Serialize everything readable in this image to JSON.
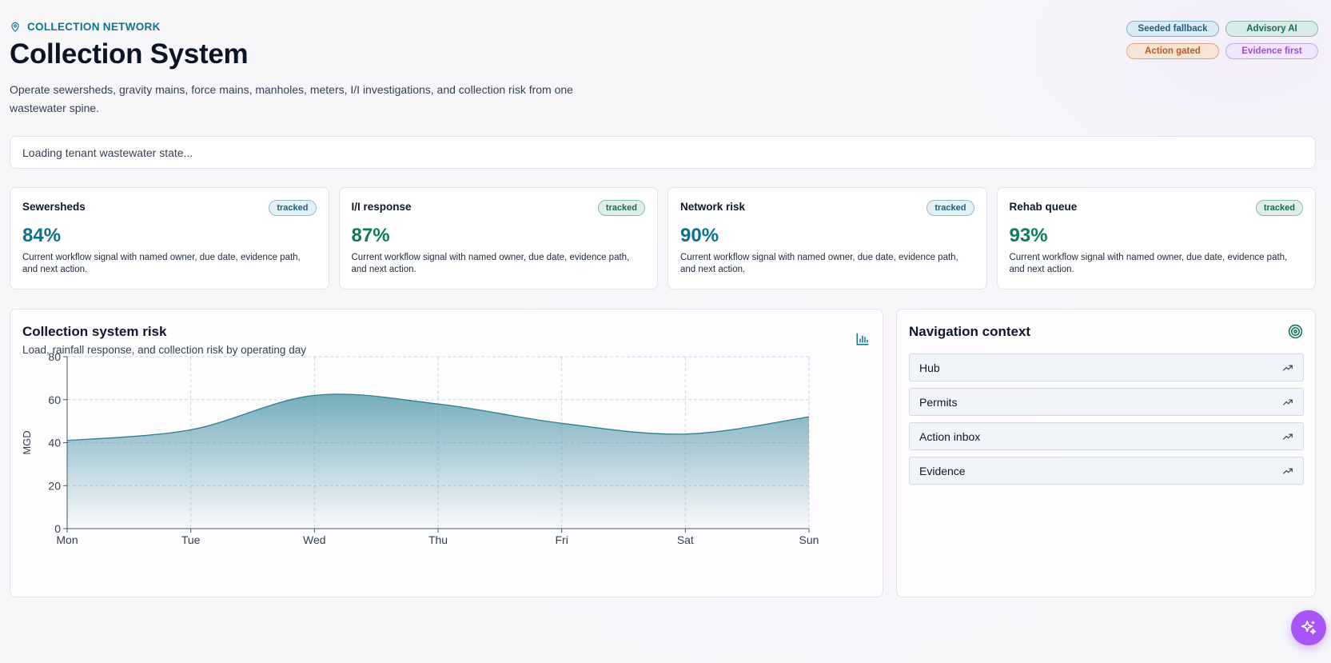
{
  "header": {
    "eyebrow": "COLLECTION NETWORK",
    "eyebrow_icon": "map-pin-icon",
    "title": "Collection System",
    "description": "Operate sewersheds, gravity mains, force mains, manholes, meters, I/I investigations, and collection risk from one wastewater spine."
  },
  "badges": [
    {
      "label": "Seeded fallback",
      "color": "#1e5f7e"
    },
    {
      "label": "Advisory AI",
      "color": "#196a58"
    },
    {
      "label": "Action gated",
      "color": "#b45a24"
    },
    {
      "label": "Evidence first",
      "color": "#9a4fd6"
    }
  ],
  "status": {
    "text": "Loading tenant wastewater state..."
  },
  "cards": [
    {
      "title": "Sewersheds",
      "tag": "tracked",
      "value": "84%",
      "value_color": "#0e6f8e",
      "description": "Current workflow signal with named owner, due date, evidence path, and next action."
    },
    {
      "title": "I/I response",
      "tag": "tracked",
      "value": "87%",
      "value_color": "#0f7a5c",
      "description": "Current workflow signal with named owner, due date, evidence path, and next action."
    },
    {
      "title": "Network risk",
      "tag": "tracked",
      "value": "90%",
      "value_color": "#0e6f8e",
      "description": "Current workflow signal with named owner, due date, evidence path, and next action."
    },
    {
      "title": "Rehab queue",
      "tag": "tracked",
      "value": "93%",
      "value_color": "#0f7a5c",
      "description": "Current workflow signal with named owner, due date, evidence path, and next action."
    }
  ],
  "chart": {
    "title": "Collection system risk",
    "subtitle": "Load, rainfall response, and collection risk by operating day",
    "icon": "bar-chart-icon"
  },
  "chart_data": {
    "type": "area",
    "categories": [
      "Mon",
      "Tue",
      "Wed",
      "Thu",
      "Fri",
      "Sat",
      "Sun"
    ],
    "series": [
      {
        "values": [
          41,
          46,
          62,
          58,
          49,
          44,
          52
        ],
        "color": "#2f7d91"
      }
    ],
    "ylabel": "MGD",
    "ylim": [
      0,
      80
    ],
    "yticks": [
      0,
      20,
      40,
      60,
      80
    ],
    "grid": true,
    "legend": "none"
  },
  "nav": {
    "title": "Navigation context",
    "icon": "target-icon",
    "items": [
      {
        "label": "Hub",
        "icon": "trending-up-icon"
      },
      {
        "label": "Permits",
        "icon": "trending-up-icon"
      },
      {
        "label": "Action inbox",
        "icon": "trending-up-icon"
      },
      {
        "label": "Evidence",
        "icon": "trending-up-icon"
      }
    ]
  },
  "fab": {
    "icon": "sparkles-icon"
  }
}
